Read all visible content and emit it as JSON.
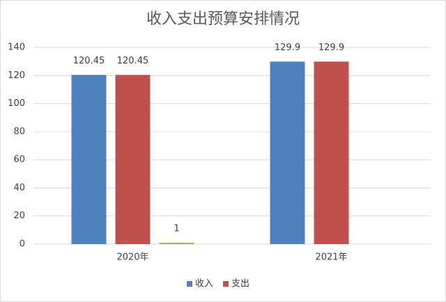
{
  "chart_data": {
    "type": "bar",
    "title": "收入支出预算安排情况",
    "categories": [
      "2020年",
      "2021年"
    ],
    "series": [
      {
        "name": "收入",
        "color": "#4f81bd",
        "values": [
          120.45,
          129.9
        ]
      },
      {
        "name": "支出",
        "color": "#c0504d",
        "values": [
          120.45,
          129.9
        ]
      },
      {
        "color": "#9bbb59",
        "values": [
          1,
          null
        ]
      }
    ],
    "ylim": [
      0,
      140
    ],
    "yticks": [
      0,
      20,
      40,
      60,
      80,
      100,
      120,
      140
    ],
    "grid": true,
    "legend": "bottom"
  }
}
